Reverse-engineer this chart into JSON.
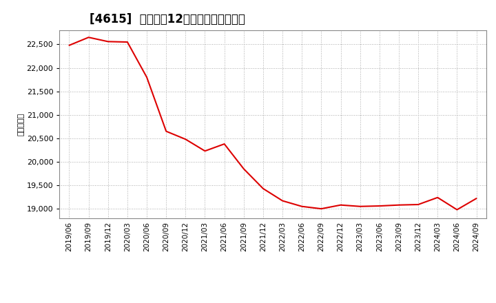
{
  "title": "[4615]  売上高の12か月移動合計の推移",
  "ylabel": "（百万円）",
  "line_color": "#dd0000",
  "background_color": "#ffffff",
  "plot_background": "#ffffff",
  "grid_color": "#aaaaaa",
  "ylim": [
    18800,
    22800
  ],
  "yticks": [
    19000,
    19500,
    20000,
    20500,
    21000,
    21500,
    22000,
    22500
  ],
  "dates": [
    "2019/06",
    "2019/09",
    "2019/12",
    "2020/03",
    "2020/06",
    "2020/09",
    "2020/12",
    "2021/03",
    "2021/06",
    "2021/09",
    "2021/12",
    "2022/03",
    "2022/06",
    "2022/09",
    "2022/12",
    "2023/03",
    "2023/06",
    "2023/09",
    "2023/12",
    "2024/03",
    "2024/06",
    "2024/09"
  ],
  "values": [
    22480,
    22650,
    22560,
    22550,
    21800,
    20650,
    20480,
    20230,
    20380,
    19850,
    19430,
    19170,
    19050,
    19000,
    19080,
    19050,
    19060,
    19080,
    19090,
    19240,
    18980,
    19220
  ],
  "title_fontsize": 12,
  "ylabel_fontsize": 8,
  "tick_fontsize": 8,
  "xtick_fontsize": 7.5
}
